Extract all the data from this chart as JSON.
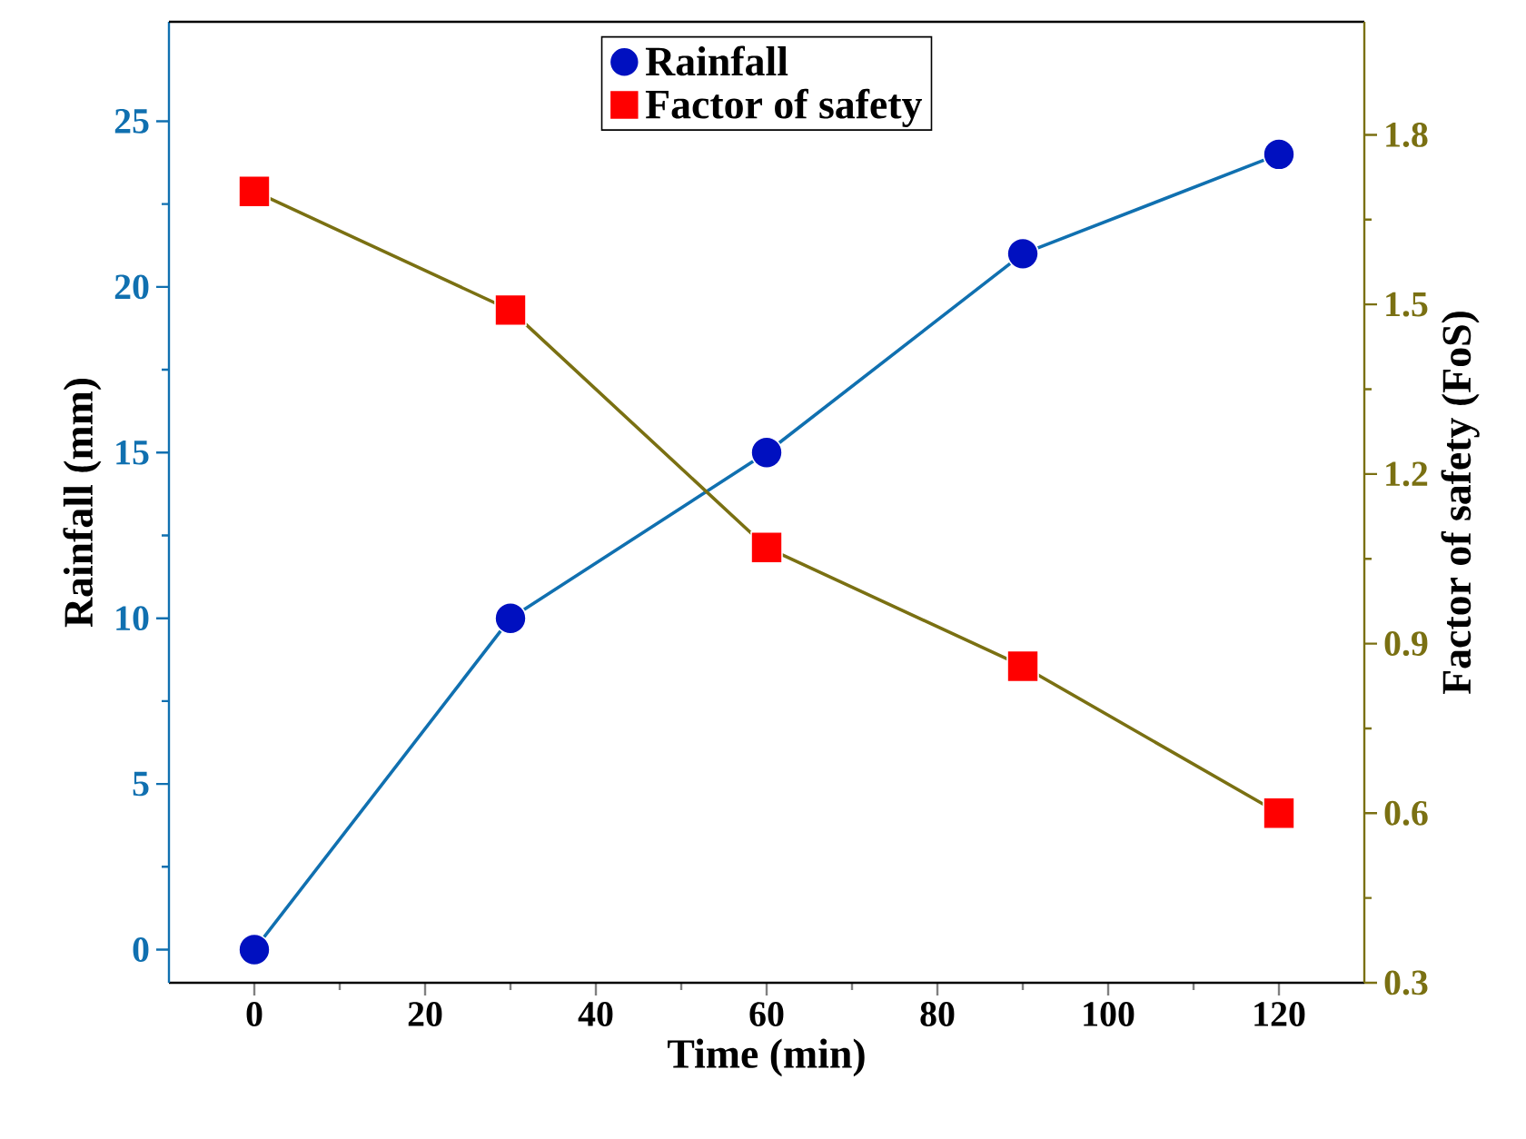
{
  "chart_data": {
    "type": "line",
    "xlabel": "Time (min)",
    "ylabel": "Rainfall (mm)",
    "y2label": "Factor of safety (FoS)",
    "x": [
      0,
      30,
      60,
      90,
      120
    ],
    "series": [
      {
        "name": "Rainfall",
        "color": "#1070b0",
        "colors": [
          "#0010c0",
          "#0010c0",
          "#0010c0",
          "#0010c0",
          "#0010c0"
        ],
        "marker": "circle",
        "values": [
          0,
          10,
          15,
          21,
          24
        ]
      },
      {
        "name": "Factor of safety",
        "color": "#7a7012",
        "colors": [
          "#ff0000",
          "#ff0000",
          "#ff0000",
          "#ff0000",
          "#ff0000"
        ],
        "marker": "square",
        "axis": "y2",
        "values": [
          1.7,
          1.49,
          1.07,
          0.86,
          0.6
        ]
      }
    ],
    "xlim": [
      -10,
      130
    ],
    "xticks": [
      0,
      20,
      40,
      60,
      80,
      100,
      120
    ],
    "ylim": [
      -1,
      28
    ],
    "yticks": [
      0,
      5,
      10,
      15,
      20,
      25
    ],
    "y2lim": [
      0.3,
      2.0
    ],
    "y2ticks": [
      0.3,
      0.6,
      0.9,
      1.2,
      1.5,
      1.8
    ],
    "legend": "top",
    "line_style": "solid"
  }
}
